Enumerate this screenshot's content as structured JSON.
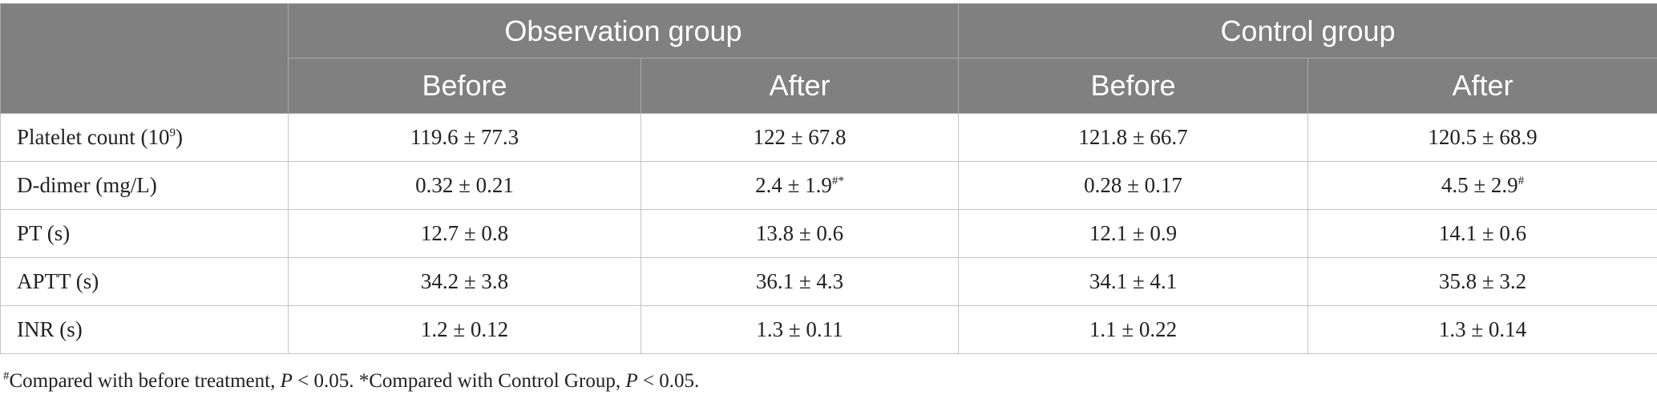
{
  "header": {
    "groups": [
      "Observation group",
      "Control group"
    ],
    "subheaders": [
      "Before",
      "After",
      "Before",
      "After"
    ]
  },
  "rows": [
    {
      "label": "Platelet count (10",
      "label_sup": "9",
      "label_tail": ")",
      "cells": [
        {
          "v": "119.6 ± 77.3",
          "s": ""
        },
        {
          "v": "122 ± 67.8",
          "s": ""
        },
        {
          "v": "121.8 ± 66.7",
          "s": ""
        },
        {
          "v": "120.5 ± 68.9",
          "s": ""
        }
      ]
    },
    {
      "label": "D-dimer (mg/L)",
      "label_sup": "",
      "label_tail": "",
      "cells": [
        {
          "v": "0.32 ± 0.21",
          "s": ""
        },
        {
          "v": "2.4 ± 1.9",
          "s": "#*"
        },
        {
          "v": "0.28 ± 0.17",
          "s": ""
        },
        {
          "v": "4.5 ± 2.9",
          "s": "#"
        }
      ]
    },
    {
      "label": "PT (s)",
      "label_sup": "",
      "label_tail": "",
      "cells": [
        {
          "v": "12.7 ± 0.8",
          "s": ""
        },
        {
          "v": "13.8 ± 0.6",
          "s": ""
        },
        {
          "v": "12.1 ± 0.9",
          "s": ""
        },
        {
          "v": "14.1 ± 0.6",
          "s": ""
        }
      ]
    },
    {
      "label": "APTT (s)",
      "label_sup": "",
      "label_tail": "",
      "cells": [
        {
          "v": "34.2 ± 3.8",
          "s": ""
        },
        {
          "v": "36.1 ± 4.3",
          "s": ""
        },
        {
          "v": "34.1 ± 4.1",
          "s": ""
        },
        {
          "v": "35.8 ± 3.2",
          "s": ""
        }
      ]
    },
    {
      "label": "INR (s)",
      "label_sup": "",
      "label_tail": "",
      "cells": [
        {
          "v": "1.2 ± 0.12",
          "s": ""
        },
        {
          "v": "1.3 ± 0.11",
          "s": ""
        },
        {
          "v": "1.1 ± 0.22",
          "s": ""
        },
        {
          "v": "1.3 ± 0.14",
          "s": ""
        }
      ]
    }
  ],
  "footnote": {
    "mark1": "#",
    "text1": "Compared with before treatment, ",
    "p1": "P",
    "tail1": " < 0.05. *Compared with Control Group, ",
    "p2": "P",
    "tail2": " < 0.05."
  }
}
